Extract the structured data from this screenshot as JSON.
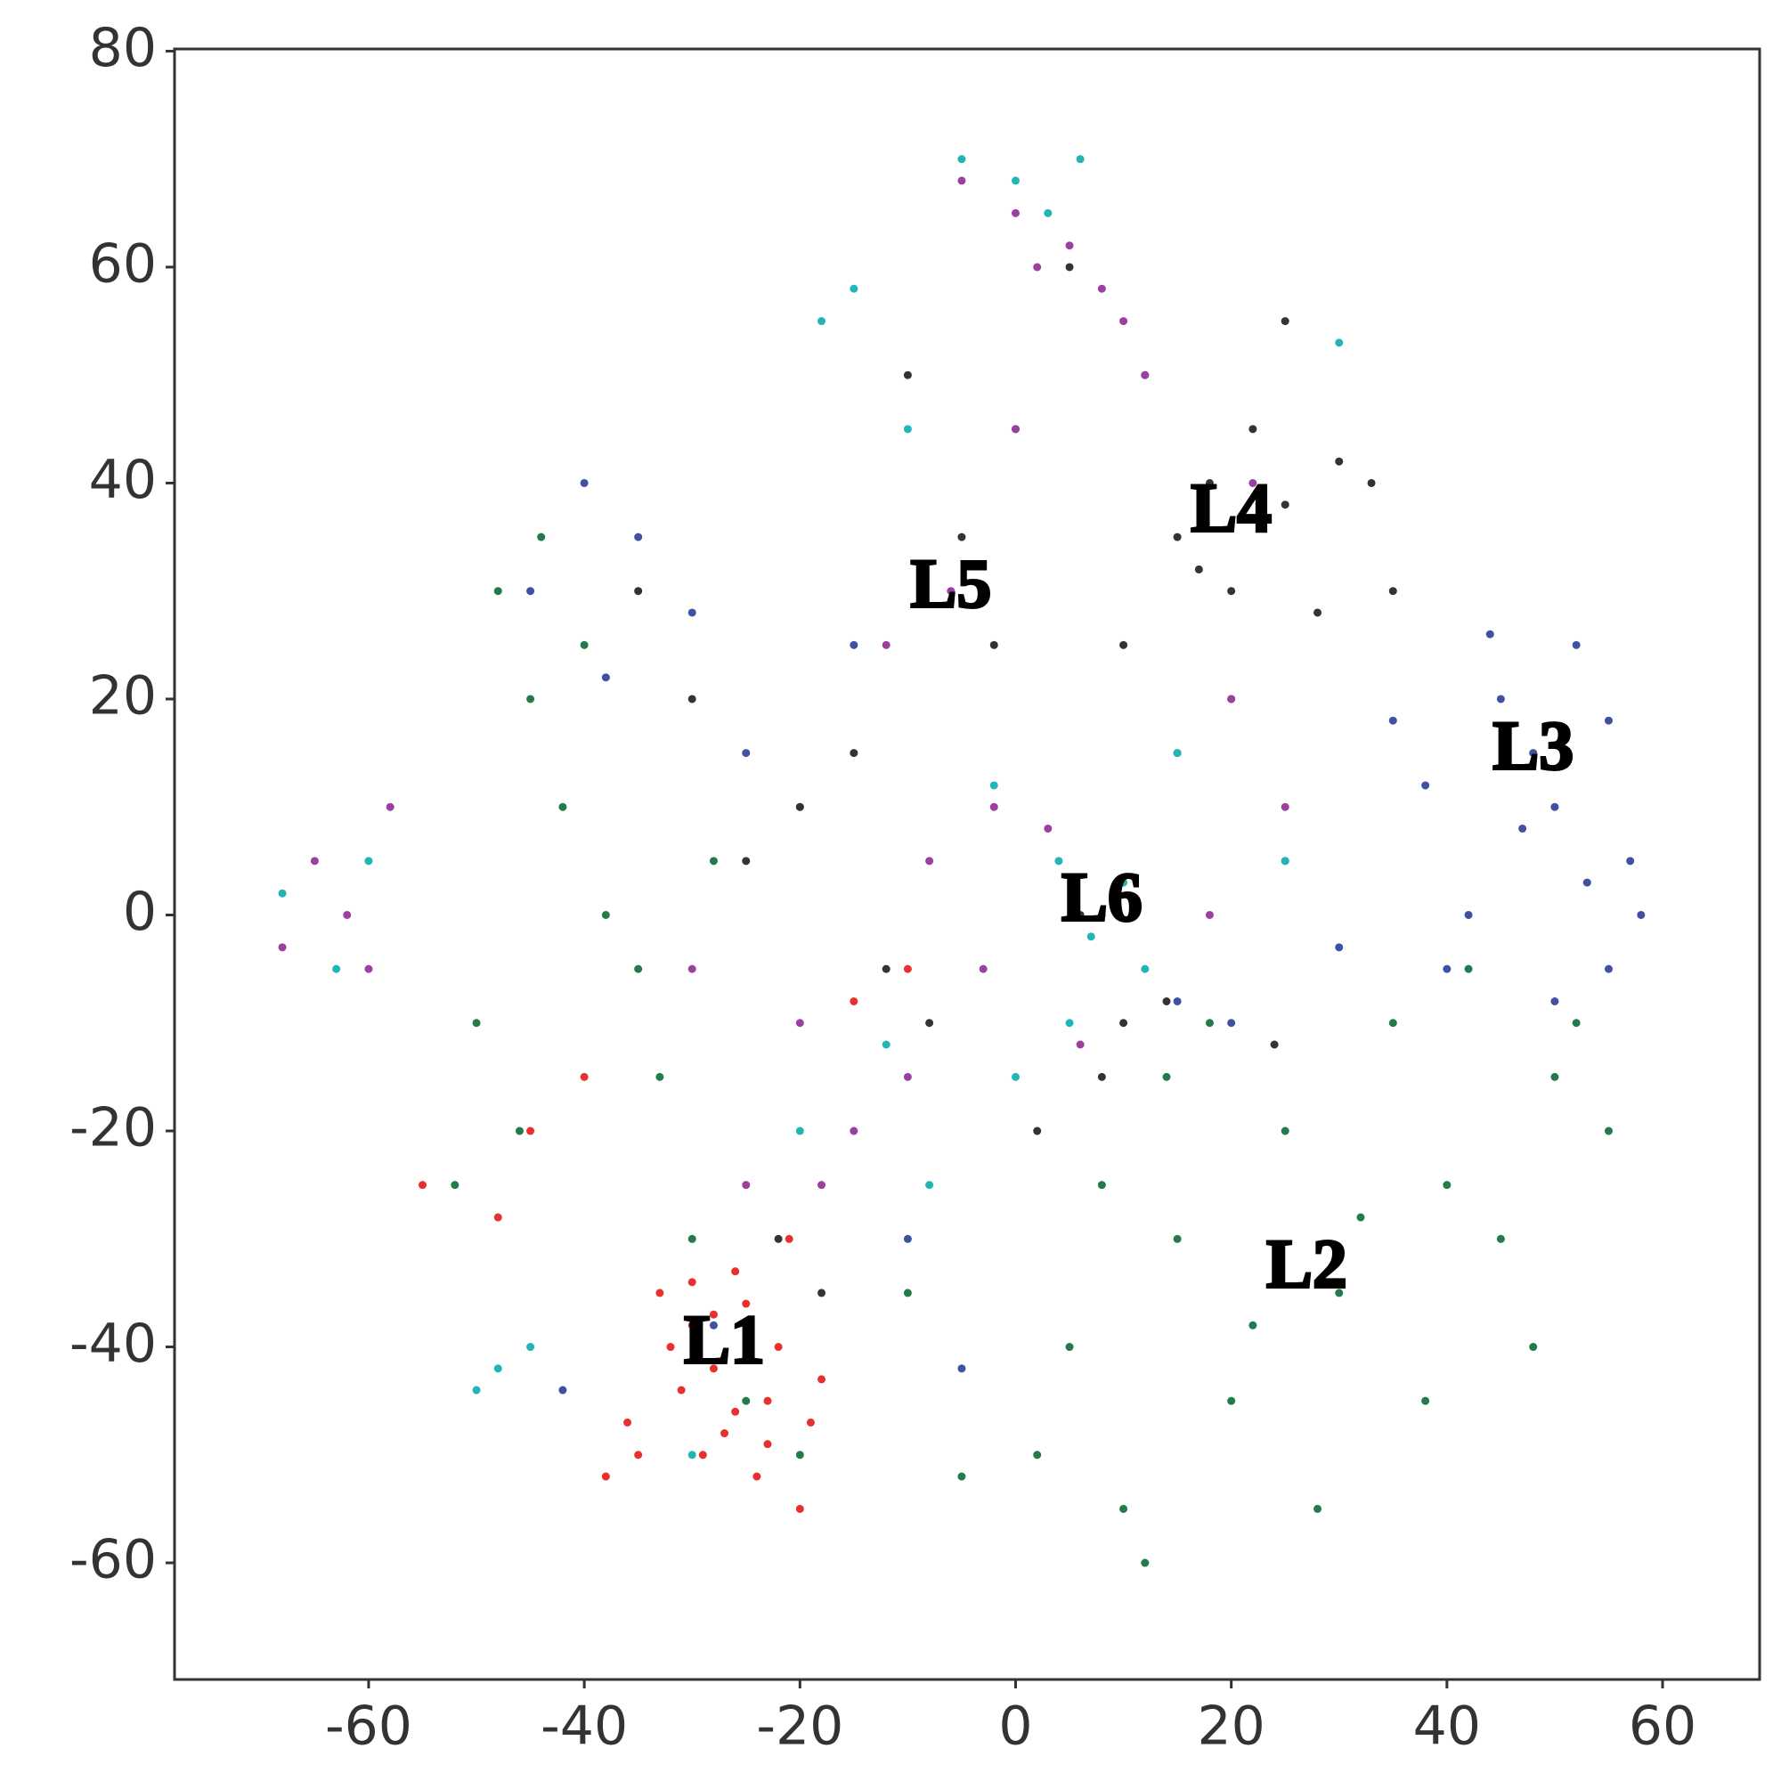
{
  "chart_data": {
    "type": "scatter",
    "xlim": [
      -78,
      69
    ],
    "ylim": [
      -70.8,
      80.2
    ],
    "xticks": [
      -60,
      -40,
      -20,
      0,
      20,
      40,
      60
    ],
    "yticks": [
      -60,
      -40,
      -20,
      0,
      20,
      40,
      60,
      80
    ],
    "annotations": [
      {
        "text": "L1",
        "x": -27,
        "y": -40
      },
      {
        "text": "L2",
        "x": 27,
        "y": -33
      },
      {
        "text": "L3",
        "x": 48,
        "y": 15
      },
      {
        "text": "L4",
        "x": 20,
        "y": 37
      },
      {
        "text": "L5",
        "x": -6,
        "y": 30
      },
      {
        "text": "L6",
        "x": 8,
        "y": 1
      }
    ],
    "series": [
      {
        "color": "#e8312f",
        "x": [
          -30,
          -28,
          -25,
          -23,
          -32,
          -27,
          -26,
          -29,
          -24,
          -22,
          -31,
          -33,
          -20,
          -19,
          -25,
          -28,
          -35,
          -38,
          -21,
          -26,
          -30,
          -23,
          -18,
          -48,
          -55,
          -45,
          -40,
          -15,
          -10,
          -36
        ],
        "y": [
          -38,
          -42,
          -36,
          -45,
          -40,
          -48,
          -33,
          -50,
          -52,
          -40,
          -44,
          -35,
          -55,
          -47,
          -41,
          -37,
          -50,
          -52,
          -30,
          -46,
          -34,
          -49,
          -43,
          -28,
          -25,
          -20,
          -15,
          -8,
          -5,
          -47
        ]
      },
      {
        "color": "#237a4a",
        "x": [
          -48,
          -45,
          -42,
          -38,
          -35,
          -50,
          -46,
          -40,
          -33,
          -44,
          -52,
          -30,
          -28,
          -25,
          -20,
          5,
          10,
          15,
          20,
          25,
          30,
          35,
          40,
          45,
          50,
          55,
          12,
          18,
          28,
          38,
          42,
          22,
          8,
          2,
          32,
          48,
          52,
          -10,
          -5,
          14
        ],
        "y": [
          30,
          20,
          10,
          0,
          -5,
          -10,
          -20,
          25,
          -15,
          35,
          -25,
          -30,
          5,
          -45,
          -50,
          -40,
          -55,
          -30,
          -45,
          -20,
          -35,
          -10,
          -25,
          -30,
          -15,
          -20,
          -60,
          -10,
          -55,
          -45,
          -5,
          -38,
          -25,
          -50,
          -28,
          -40,
          -10,
          -35,
          -52,
          -15
        ]
      },
      {
        "color": "#3f51a0",
        "x": [
          -40,
          -35,
          -30,
          -45,
          -38,
          -25,
          -20,
          -15,
          45,
          48,
          50,
          52,
          55,
          57,
          42,
          40,
          38,
          50,
          53,
          47,
          44,
          30,
          25,
          20,
          -10,
          -5,
          15,
          58,
          35,
          55,
          -28,
          -42
        ],
        "y": [
          40,
          35,
          28,
          30,
          22,
          15,
          10,
          25,
          20,
          15,
          10,
          25,
          18,
          5,
          0,
          -5,
          12,
          -8,
          3,
          8,
          26,
          -3,
          5,
          -10,
          -30,
          -42,
          -8,
          0,
          18,
          -5,
          -38,
          -44
        ]
      },
      {
        "color": "#333333",
        "x": [
          15,
          18,
          20,
          22,
          25,
          28,
          30,
          12,
          10,
          25,
          20,
          17,
          33,
          35,
          5,
          0,
          -5,
          -10,
          -15,
          -20,
          -25,
          -30,
          -8,
          2,
          8,
          14,
          24,
          -2,
          -12,
          -35,
          -18,
          -22,
          6,
          10
        ],
        "y": [
          35,
          40,
          30,
          45,
          38,
          28,
          42,
          50,
          25,
          55,
          20,
          32,
          40,
          30,
          60,
          45,
          35,
          50,
          15,
          10,
          5,
          20,
          -10,
          -20,
          -15,
          -8,
          -12,
          25,
          -5,
          30,
          -35,
          -30,
          0,
          -10
        ]
      },
      {
        "color": "#9b3fa0",
        "x": [
          -65,
          -62,
          -58,
          -68,
          -60,
          0,
          2,
          -5,
          5,
          8,
          10,
          12,
          -2,
          -8,
          15,
          20,
          18,
          -10,
          -15,
          -20,
          -25,
          -12,
          -3,
          3,
          6,
          -6,
          0,
          22,
          -30,
          -18,
          25
        ],
        "y": [
          5,
          0,
          10,
          -3,
          -5,
          65,
          60,
          68,
          62,
          58,
          55,
          50,
          10,
          5,
          15,
          20,
          0,
          -15,
          -20,
          -10,
          -25,
          25,
          -5,
          8,
          -12,
          30,
          45,
          40,
          -5,
          -25,
          10
        ]
      },
      {
        "color": "#22b5b5",
        "x": [
          -68,
          -63,
          -60,
          -5,
          0,
          3,
          6,
          -15,
          -18,
          -10,
          -2,
          4,
          8,
          12,
          5,
          10,
          15,
          -8,
          -20,
          0,
          25,
          -48,
          -50,
          -45,
          -30,
          30,
          7,
          -12
        ],
        "y": [
          2,
          -5,
          5,
          70,
          68,
          65,
          70,
          58,
          55,
          45,
          12,
          5,
          0,
          -5,
          -10,
          3,
          15,
          -25,
          -20,
          -15,
          5,
          -42,
          -44,
          -40,
          -50,
          53,
          -2,
          -12
        ]
      }
    ]
  }
}
